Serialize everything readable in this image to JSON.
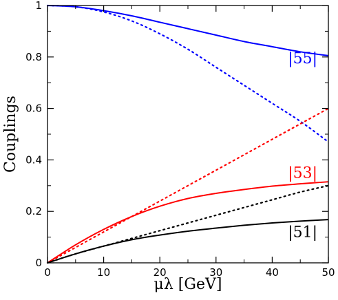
{
  "chart_data": {
    "type": "line",
    "xlabel": "μλ [GeV]",
    "ylabel": "Couplings",
    "xlim": [
      0,
      50
    ],
    "ylim": [
      0,
      1
    ],
    "xticks": [
      0,
      10,
      20,
      30,
      40,
      50
    ],
    "yticks": [
      0,
      0.2,
      0.4,
      0.6,
      0.8,
      1
    ],
    "xtick_labels": [
      "0",
      "10",
      "20",
      "30",
      "40",
      "50"
    ],
    "ytick_labels": [
      "0",
      "0.2",
      "0.4",
      "0.6",
      "0.8",
      "1"
    ],
    "grid": false,
    "legend": "none (curve labels placed next to curves)",
    "series": [
      {
        "name": "|55|",
        "style": "solid",
        "color": "#0000ff",
        "x": [
          0,
          5,
          10,
          15,
          20,
          25,
          30,
          35,
          40,
          45,
          50
        ],
        "y": [
          1.0,
          0.995,
          0.98,
          0.96,
          0.935,
          0.91,
          0.885,
          0.86,
          0.84,
          0.82,
          0.805
        ]
      },
      {
        "name": "|55| dotted",
        "style": "dotted",
        "color": "#0000ff",
        "x": [
          0,
          5,
          10,
          15,
          20,
          25,
          30,
          35,
          40,
          45,
          50
        ],
        "y": [
          1.0,
          0.995,
          0.975,
          0.94,
          0.89,
          0.83,
          0.76,
          0.69,
          0.62,
          0.55,
          0.47
        ]
      },
      {
        "name": "|53|",
        "style": "solid",
        "color": "#ff0000",
        "x": [
          0,
          5,
          10,
          15,
          20,
          25,
          30,
          35,
          40,
          45,
          50
        ],
        "y": [
          0.0,
          0.07,
          0.13,
          0.18,
          0.22,
          0.25,
          0.27,
          0.285,
          0.298,
          0.307,
          0.315
        ]
      },
      {
        "name": "|53| dotted",
        "style": "dotted",
        "color": "#ff0000",
        "x": [
          0,
          5,
          10,
          15,
          20,
          25,
          30,
          35,
          40,
          45,
          50
        ],
        "y": [
          0.0,
          0.06,
          0.12,
          0.18,
          0.24,
          0.3,
          0.36,
          0.42,
          0.48,
          0.54,
          0.6
        ]
      },
      {
        "name": "|51|",
        "style": "solid",
        "color": "#000000",
        "x": [
          0,
          5,
          10,
          15,
          20,
          25,
          30,
          35,
          40,
          45,
          50
        ],
        "y": [
          0.0,
          0.035,
          0.065,
          0.09,
          0.108,
          0.123,
          0.135,
          0.146,
          0.155,
          0.162,
          0.168
        ]
      },
      {
        "name": "|51| dotted",
        "style": "dotted",
        "color": "#000000",
        "x": [
          0,
          5,
          10,
          15,
          20,
          25,
          30,
          35,
          40,
          45,
          50
        ],
        "y": [
          0.0,
          0.035,
          0.065,
          0.095,
          0.125,
          0.155,
          0.185,
          0.215,
          0.245,
          0.275,
          0.3
        ]
      }
    ],
    "labels": [
      {
        "text": "|55|",
        "color": "#0000ff",
        "x": 42.8,
        "y": 0.775
      },
      {
        "text": "|53|",
        "color": "#ff0000",
        "x": 42.8,
        "y": 0.33
      },
      {
        "text": "|51|",
        "color": "#000000",
        "x": 42.8,
        "y": 0.1
      }
    ]
  }
}
